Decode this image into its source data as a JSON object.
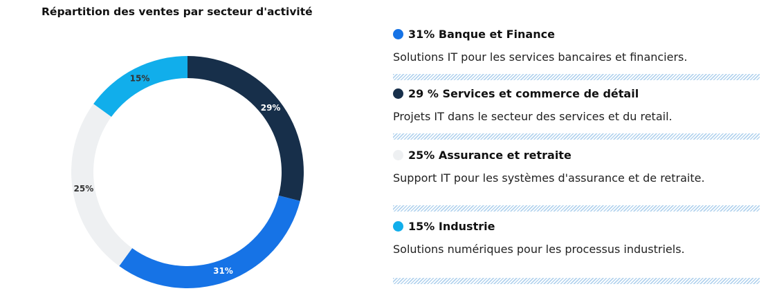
{
  "chart_data": {
    "type": "pie",
    "title": "Répartition des ventes par secteur d'activité",
    "series": [
      {
        "name": "Banque et Finance",
        "value": 31,
        "label": "31%",
        "color": "#1673e6"
      },
      {
        "name": "Services et commerce de détail",
        "value": 29,
        "label": "29%",
        "color": "#172f4a"
      },
      {
        "name": "Assurance et retraite",
        "value": 25,
        "label": "25%",
        "color": "#eef0f2"
      },
      {
        "name": "Industrie",
        "value": 15,
        "label": "15%",
        "color": "#11aeeb"
      }
    ],
    "drawing_order": [
      1,
      0,
      2,
      3
    ],
    "label_colors": {
      "dark": "#333333",
      "light": "#ffffff"
    }
  },
  "legend": [
    {
      "heading": "31% Banque et Finance",
      "description": "Solutions IT pour les services bancaires et financiers.",
      "color": "#1673e6"
    },
    {
      "heading": "29 % Services et commerce de détail",
      "description": "Projets IT dans le secteur des services et du retail.",
      "color": "#172f4a"
    },
    {
      "heading": "25% Assurance et retraite",
      "description": "Support IT pour les systèmes d'assurance et de retraite.",
      "color": "#eef0f2"
    },
    {
      "heading": "15% Industrie",
      "description": "Solutions numériques pour les processus industriels.",
      "color": "#11aeeb"
    }
  ]
}
